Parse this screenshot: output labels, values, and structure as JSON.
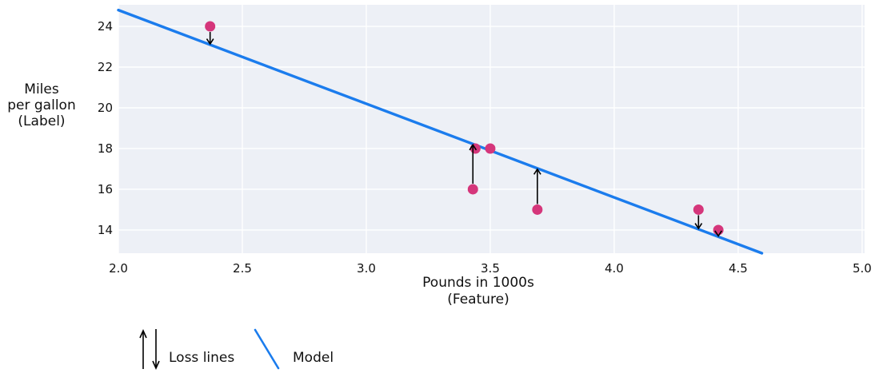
{
  "chart_data": {
    "type": "scatter",
    "title": "",
    "xlabel": "Pounds in 1000s\n(Feature)",
    "ylabel": "Miles\nper gallon\n(Label)",
    "xlim": [
      2.0,
      5.01
    ],
    "ylim": [
      12.86,
      25.06
    ],
    "xticks": [
      2.0,
      2.5,
      3.0,
      3.5,
      4.0,
      4.5,
      5.0
    ],
    "xtick_labels": [
      "2.0",
      "2.5",
      "3.0",
      "3.5",
      "4.0",
      "4.5",
      "5.0"
    ],
    "yticks": [
      14,
      16,
      18,
      20,
      22,
      24
    ],
    "ytick_labels": [
      "14",
      "16",
      "18",
      "20",
      "22",
      "24"
    ],
    "grid": true,
    "points": [
      {
        "x": 2.37,
        "y": 24,
        "loss_arrow": "down"
      },
      {
        "x": 3.44,
        "y": 18,
        "loss_arrow": null
      },
      {
        "x": 3.5,
        "y": 18,
        "loss_arrow": null
      },
      {
        "x": 3.43,
        "y": 16,
        "loss_arrow": "up"
      },
      {
        "x": 3.69,
        "y": 15,
        "loss_arrow": "up"
      },
      {
        "x": 4.34,
        "y": 15,
        "loss_arrow": "down"
      },
      {
        "x": 4.42,
        "y": 14,
        "loss_arrow": "down"
      }
    ],
    "model_line": {
      "slope": -4.6,
      "intercept": 34.0
    },
    "legend": [
      {
        "symbol": "loss-arrows",
        "label": "Loss lines"
      },
      {
        "symbol": "model-line",
        "label": "Model"
      }
    ],
    "colors": {
      "point": "#d5367b",
      "model": "#1b7ced",
      "plot_bg": "#edf0f6",
      "grid": "#ffffff",
      "arrow": "#000000",
      "text": "#111111"
    }
  }
}
